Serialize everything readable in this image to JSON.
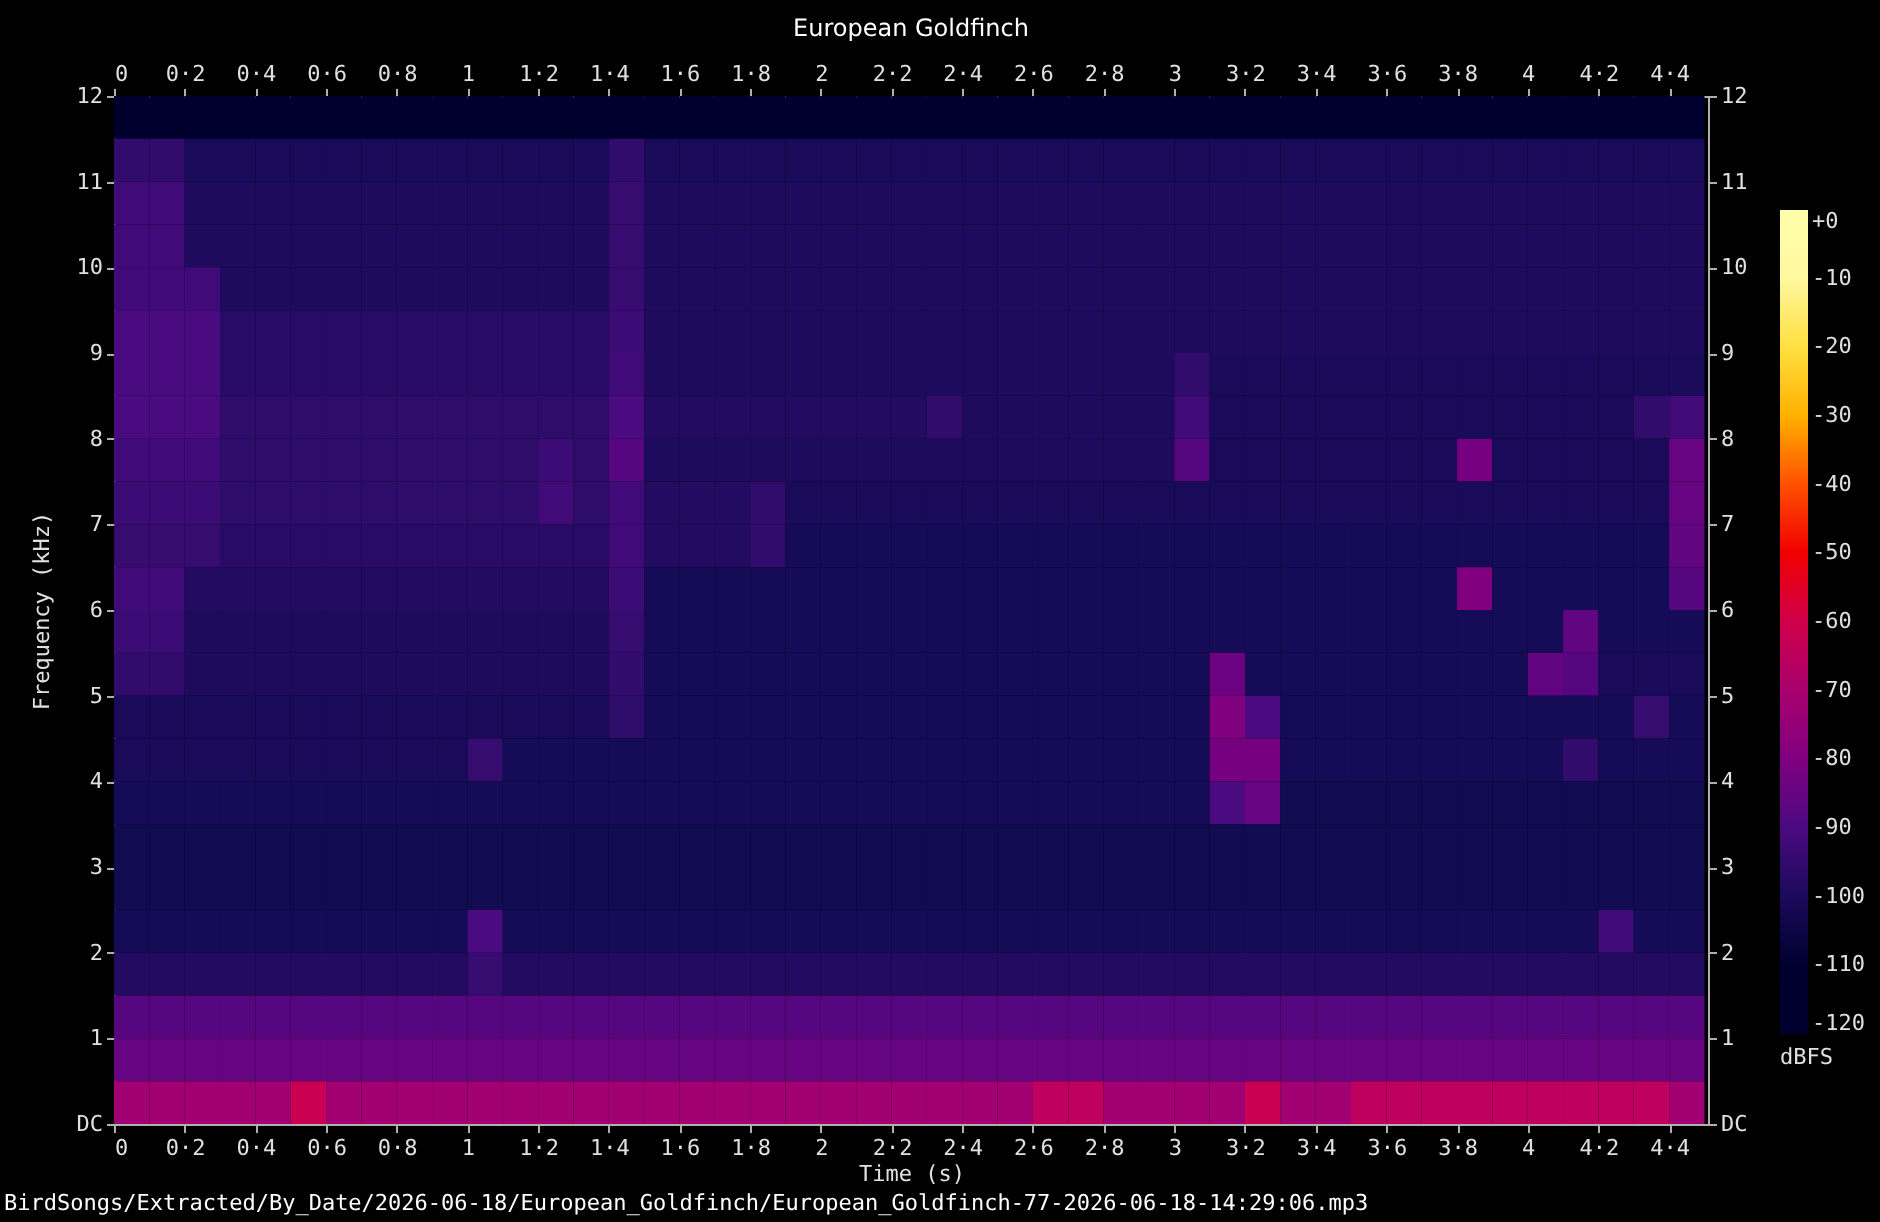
{
  "chart_data": {
    "type": "heatmap",
    "title": "European Goldfinch",
    "xlabel": "Time (s)",
    "ylabel": "Frequency (kHz)",
    "clabel": "dBFS",
    "annotations": [
      "BirdSongs/Extracted/By_Date/2026-06-18/European_Goldfinch/European_Goldfinch-77-2026-06-18-14:29:06.mp3"
    ],
    "xlim": [
      0,
      4.51
    ],
    "ylim": [
      0,
      12
    ],
    "x2lim": [
      0,
      4.51
    ],
    "y2lim": [
      0,
      12
    ],
    "xticks": [
      0,
      {
        "value": 0.2,
        "label": "0·2"
      },
      {
        "value": 0.4,
        "label": "0·4"
      },
      {
        "value": 0.6,
        "label": "0·6"
      },
      {
        "value": 0.8,
        "label": "0·8"
      },
      1,
      {
        "value": 1.2,
        "label": "1·2"
      },
      {
        "value": 1.4,
        "label": "1·4"
      },
      {
        "value": 1.6,
        "label": "1·6"
      },
      {
        "value": 1.8,
        "label": "1·8"
      },
      2,
      {
        "value": 2.2,
        "label": "2·2"
      },
      {
        "value": 2.4,
        "label": "2·4"
      },
      {
        "value": 2.6,
        "label": "2·6"
      },
      {
        "value": 2.8,
        "label": "2·8"
      },
      3,
      {
        "value": 3.2,
        "label": "3·2"
      },
      {
        "value": 3.4,
        "label": "3·4"
      },
      {
        "value": 3.6,
        "label": "3·6"
      },
      {
        "value": 3.8,
        "label": "3·8"
      },
      4,
      {
        "value": 4.2,
        "label": "4·2"
      },
      {
        "value": 4.4,
        "label": "4·4"
      }
    ],
    "x2ticks": [
      0,
      {
        "value": 0.2,
        "label": "0·2"
      },
      {
        "value": 0.4,
        "label": "0·4"
      },
      {
        "value": 0.6,
        "label": "0·6"
      },
      {
        "value": 0.8,
        "label": "0·8"
      },
      1,
      {
        "value": 1.2,
        "label": "1·2"
      },
      {
        "value": 1.4,
        "label": "1·4"
      },
      {
        "value": 1.6,
        "label": "1·6"
      },
      {
        "value": 1.8,
        "label": "1·8"
      },
      2,
      {
        "value": 2.2,
        "label": "2·2"
      },
      {
        "value": 2.4,
        "label": "2·4"
      },
      {
        "value": 2.6,
        "label": "2·6"
      },
      {
        "value": 2.8,
        "label": "2·8"
      },
      3,
      {
        "value": 3.2,
        "label": "3·2"
      },
      {
        "value": 3.4,
        "label": "3·4"
      },
      {
        "value": 3.6,
        "label": "3·6"
      },
      {
        "value": 3.8,
        "label": "3·8"
      },
      4,
      {
        "value": 4.2,
        "label": "4·2"
      },
      {
        "value": 4.4,
        "label": "4·4"
      }
    ],
    "yticks": [
      {
        "value": 0,
        "label": "DC"
      },
      1,
      2,
      3,
      4,
      5,
      6,
      7,
      8,
      9,
      10,
      11,
      12
    ],
    "y2ticks": [
      {
        "value": 0,
        "label": "DC"
      },
      1,
      2,
      3,
      4,
      5,
      6,
      7,
      8,
      9,
      10,
      11,
      12
    ],
    "clim": [
      -120,
      0
    ],
    "cticks": [
      {
        "value": 0,
        "label": "+0"
      },
      -10,
      -20,
      -30,
      -40,
      -50,
      -60,
      -70,
      -80,
      -90,
      -100,
      -110,
      -120
    ],
    "x": [
      0.05,
      0.15,
      0.25,
      0.35,
      0.45,
      0.55,
      0.65,
      0.75,
      0.85,
      0.95,
      1.05,
      1.15,
      1.25,
      1.35,
      1.45,
      1.55,
      1.65,
      1.75,
      1.85,
      1.95,
      2.05,
      2.15,
      2.25,
      2.35,
      2.45,
      2.55,
      2.65,
      2.75,
      2.85,
      2.95,
      3.05,
      3.15,
      3.25,
      3.35,
      3.45,
      3.55,
      3.65,
      3.75,
      3.85,
      3.95,
      4.05,
      4.15,
      4.25,
      4.35,
      4.45
    ],
    "cells": [
      [
        -115,
        -115,
        -115,
        -115,
        -115,
        -115,
        -115,
        -115,
        -115,
        -115,
        -115,
        -115,
        -115,
        -115,
        -115,
        -115,
        -115,
        -115,
        -115,
        -115,
        -115,
        -115,
        -115,
        -115,
        -115,
        -115,
        -115,
        -115,
        -115,
        -115,
        -115,
        -115,
        -115,
        -115,
        -115,
        -115,
        -115,
        -115,
        -115,
        -115,
        -115,
        -115,
        -115,
        -115,
        -115
      ],
      [
        -95,
        -95,
        -100,
        -100,
        -100,
        -100,
        -100,
        -100,
        -100,
        -100,
        -100,
        -100,
        -100,
        -100,
        -95,
        -100,
        -100,
        -100,
        -100,
        -100,
        -100,
        -100,
        -100,
        -100,
        -100,
        -100,
        -100,
        -100,
        -100,
        -100,
        -100,
        -100,
        -100,
        -100,
        -100,
        -100,
        -100,
        -100,
        -100,
        -100,
        -100,
        -100,
        -100,
        -100,
        -100
      ],
      [
        -92,
        -92,
        -99,
        -99,
        -99,
        -99,
        -99,
        -99,
        -99,
        -99,
        -99,
        -99,
        -99,
        -99,
        -94,
        -99,
        -99,
        -99,
        -99,
        -99,
        -99,
        -99,
        -99,
        -99,
        -99,
        -99,
        -99,
        -99,
        -99,
        -99,
        -99,
        -99,
        -99,
        -99,
        -99,
        -99,
        -99,
        -99,
        -99,
        -99,
        -99,
        -99,
        -99,
        -99,
        -99
      ],
      [
        -92,
        -92,
        -99,
        -99,
        -99,
        -99,
        -99,
        -99,
        -99,
        -99,
        -99,
        -99,
        -99,
        -99,
        -94,
        -99,
        -99,
        -99,
        -99,
        -99,
        -99,
        -99,
        -99,
        -99,
        -99,
        -99,
        -99,
        -99,
        -99,
        -99,
        -99,
        -99,
        -99,
        -99,
        -99,
        -99,
        -99,
        -99,
        -99,
        -99,
        -99,
        -99,
        -99,
        -99,
        -99
      ],
      [
        -92,
        -92,
        -92,
        -99,
        -99,
        -99,
        -99,
        -99,
        -99,
        -99,
        -99,
        -99,
        -99,
        -99,
        -94,
        -99,
        -99,
        -99,
        -99,
        -99,
        -99,
        -99,
        -99,
        -99,
        -99,
        -99,
        -99,
        -99,
        -99,
        -99,
        -99,
        -99,
        -99,
        -99,
        -99,
        -99,
        -99,
        -99,
        -99,
        -99,
        -99,
        -99,
        -99,
        -99,
        -99
      ],
      [
        -90,
        -90,
        -90,
        -97,
        -97,
        -97,
        -97,
        -97,
        -97,
        -97,
        -97,
        -97,
        -97,
        -97,
        -93,
        -99,
        -99,
        -99,
        -99,
        -99,
        -99,
        -99,
        -99,
        -99,
        -99,
        -99,
        -99,
        -99,
        -99,
        -99,
        -99,
        -99,
        -99,
        -99,
        -99,
        -99,
        -99,
        -99,
        -99,
        -99,
        -99,
        -99,
        -99,
        -99,
        -99
      ],
      [
        -90,
        -90,
        -90,
        -97,
        -97,
        -97,
        -97,
        -97,
        -97,
        -97,
        -97,
        -97,
        -97,
        -97,
        -92,
        -99,
        -99,
        -99,
        -99,
        -99,
        -99,
        -99,
        -99,
        -99,
        -99,
        -99,
        -99,
        -99,
        -99,
        -99,
        -95,
        -100,
        -100,
        -100,
        -100,
        -100,
        -100,
        -100,
        -100,
        -100,
        -100,
        -100,
        -100,
        -100,
        -100
      ],
      [
        -90,
        -90,
        -90,
        -96,
        -96,
        -96,
        -96,
        -96,
        -96,
        -96,
        -96,
        -96,
        -96,
        -96,
        -90,
        -98,
        -98,
        -98,
        -98,
        -98,
        -98,
        -98,
        -98,
        -95,
        -99,
        -99,
        -99,
        -99,
        -99,
        -99,
        -92,
        -100,
        -100,
        -100,
        -100,
        -100,
        -100,
        -100,
        -100,
        -100,
        -100,
        -100,
        -100,
        -95,
        -92
      ],
      [
        -92,
        -92,
        -92,
        -96,
        -96,
        -96,
        -96,
        -96,
        -96,
        -96,
        -96,
        -96,
        -93,
        -96,
        -88,
        -99,
        -99,
        -99,
        -99,
        -99,
        -99,
        -99,
        -99,
        -99,
        -99,
        -99,
        -99,
        -99,
        -99,
        -99,
        -88,
        -100,
        -100,
        -100,
        -100,
        -100,
        -100,
        -100,
        -82,
        -100,
        -100,
        -100,
        -100,
        -100,
        -85
      ],
      [
        -93,
        -93,
        -93,
        -96,
        -96,
        -96,
        -96,
        -96,
        -96,
        -96,
        -96,
        -96,
        -92,
        -96,
        -92,
        -98,
        -98,
        -98,
        -95,
        -100,
        -100,
        -100,
        -100,
        -100,
        -100,
        -100,
        -100,
        -100,
        -100,
        -100,
        -100,
        -100,
        -100,
        -100,
        -100,
        -100,
        -100,
        -100,
        -100,
        -100,
        -100,
        -100,
        -100,
        -100,
        -85
      ],
      [
        -94,
        -94,
        -94,
        -97,
        -97,
        -97,
        -97,
        -97,
        -97,
        -97,
        -97,
        -97,
        -97,
        -97,
        -92,
        -98,
        -98,
        -98,
        -95,
        -101,
        -101,
        -101,
        -101,
        -101,
        -101,
        -101,
        -101,
        -101,
        -101,
        -101,
        -101,
        -101,
        -101,
        -101,
        -101,
        -101,
        -101,
        -101,
        -101,
        -101,
        -101,
        -101,
        -101,
        -101,
        -86
      ],
      [
        -92,
        -92,
        -98,
        -98,
        -98,
        -98,
        -98,
        -98,
        -98,
        -98,
        -98,
        -98,
        -98,
        -98,
        -93,
        -101,
        -101,
        -101,
        -101,
        -101,
        -101,
        -101,
        -101,
        -101,
        -101,
        -101,
        -101,
        -101,
        -101,
        -101,
        -101,
        -101,
        -101,
        -101,
        -101,
        -101,
        -101,
        -101,
        -80,
        -101,
        -101,
        -101,
        -101,
        -101,
        -88
      ],
      [
        -93,
        -93,
        -99,
        -99,
        -99,
        -99,
        -99,
        -99,
        -99,
        -99,
        -99,
        -99,
        -99,
        -99,
        -94,
        -101,
        -101,
        -101,
        -101,
        -101,
        -101,
        -101,
        -101,
        -101,
        -101,
        -101,
        -101,
        -101,
        -101,
        -101,
        -101,
        -101,
        -101,
        -101,
        -101,
        -101,
        -101,
        -101,
        -101,
        -101,
        -101,
        -86,
        -101,
        -101,
        -101
      ],
      [
        -95,
        -95,
        -99,
        -99,
        -99,
        -99,
        -99,
        -99,
        -99,
        -99,
        -99,
        -99,
        -99,
        -99,
        -95,
        -101,
        -101,
        -101,
        -101,
        -101,
        -101,
        -101,
        -101,
        -101,
        -101,
        -101,
        -101,
        -101,
        -101,
        -101,
        -101,
        -84,
        -101,
        -101,
        -101,
        -101,
        -101,
        -101,
        -101,
        -101,
        -86,
        -88,
        -100,
        -100,
        -100
      ],
      [
        -100,
        -100,
        -100,
        -100,
        -100,
        -100,
        -100,
        -100,
        -100,
        -100,
        -100,
        -100,
        -100,
        -100,
        -96,
        -101,
        -101,
        -101,
        -101,
        -101,
        -101,
        -101,
        -101,
        -101,
        -101,
        -101,
        -101,
        -101,
        -101,
        -101,
        -101,
        -80,
        -90,
        -101,
        -101,
        -101,
        -101,
        -101,
        -101,
        -101,
        -101,
        -101,
        -101,
        -94,
        -101
      ],
      [
        -100,
        -100,
        -100,
        -100,
        -100,
        -100,
        -100,
        -100,
        -100,
        -100,
        -94,
        -101,
        -101,
        -101,
        -101,
        -101,
        -101,
        -101,
        -101,
        -101,
        -101,
        -101,
        -101,
        -101,
        -101,
        -101,
        -101,
        -101,
        -101,
        -101,
        -101,
        -82,
        -82,
        -101,
        -101,
        -101,
        -101,
        -101,
        -101,
        -101,
        -101,
        -95,
        -101,
        -101,
        -101
      ],
      [
        -101,
        -101,
        -101,
        -101,
        -101,
        -101,
        -101,
        -101,
        -101,
        -101,
        -101,
        -101,
        -101,
        -101,
        -101,
        -101,
        -101,
        -101,
        -101,
        -101,
        -101,
        -101,
        -101,
        -101,
        -101,
        -101,
        -101,
        -101,
        -101,
        -101,
        -101,
        -90,
        -85,
        -102,
        -102,
        -102,
        -102,
        -102,
        -102,
        -102,
        -102,
        -102,
        -102,
        -102,
        -102
      ],
      [
        -102,
        -102,
        -102,
        -102,
        -102,
        -102,
        -102,
        -102,
        -102,
        -102,
        -102,
        -102,
        -102,
        -102,
        -102,
        -102,
        -102,
        -102,
        -102,
        -102,
        -102,
        -102,
        -102,
        -102,
        -102,
        -102,
        -102,
        -102,
        -102,
        -102,
        -102,
        -102,
        -102,
        -102,
        -102,
        -102,
        -102,
        -102,
        -102,
        -102,
        -102,
        -102,
        -102,
        -102,
        -102
      ],
      [
        -102,
        -102,
        -102,
        -102,
        -102,
        -102,
        -102,
        -102,
        -102,
        -102,
        -102,
        -102,
        -102,
        -102,
        -102,
        -102,
        -102,
        -102,
        -102,
        -102,
        -102,
        -102,
        -102,
        -102,
        -102,
        -102,
        -102,
        -102,
        -102,
        -102,
        -102,
        -102,
        -102,
        -102,
        -102,
        -102,
        -102,
        -102,
        -102,
        -102,
        -102,
        -102,
        -102,
        -102,
        -102
      ],
      [
        -101,
        -101,
        -101,
        -101,
        -101,
        -101,
        -101,
        -101,
        -101,
        -101,
        -90,
        -101,
        -101,
        -101,
        -101,
        -101,
        -101,
        -101,
        -101,
        -101,
        -101,
        -101,
        -101,
        -101,
        -101,
        -101,
        -101,
        -101,
        -101,
        -101,
        -101,
        -101,
        -101,
        -101,
        -101,
        -101,
        -101,
        -101,
        -101,
        -101,
        -101,
        -101,
        -92,
        -101,
        -101
      ],
      [
        -98,
        -98,
        -98,
        -98,
        -98,
        -98,
        -98,
        -98,
        -98,
        -98,
        -94,
        -98,
        -98,
        -98,
        -98,
        -98,
        -98,
        -98,
        -98,
        -98,
        -98,
        -98,
        -98,
        -98,
        -98,
        -98,
        -98,
        -98,
        -98,
        -98,
        -98,
        -98,
        -98,
        -98,
        -98,
        -98,
        -98,
        -98,
        -98,
        -98,
        -98,
        -98,
        -98,
        -98,
        -98
      ],
      [
        -88,
        -88,
        -88,
        -88,
        -88,
        -88,
        -88,
        -88,
        -88,
        -88,
        -88,
        -88,
        -88,
        -88,
        -88,
        -88,
        -88,
        -88,
        -88,
        -88,
        -88,
        -88,
        -88,
        -88,
        -88,
        -88,
        -88,
        -88,
        -88,
        -88,
        -88,
        -88,
        -88,
        -88,
        -88,
        -88,
        -88,
        -88,
        -88,
        -88,
        -88,
        -88,
        -88,
        -88,
        -88
      ],
      [
        -85,
        -85,
        -85,
        -85,
        -85,
        -85,
        -85,
        -85,
        -85,
        -85,
        -85,
        -85,
        -85,
        -85,
        -85,
        -85,
        -85,
        -85,
        -85,
        -85,
        -85,
        -85,
        -85,
        -85,
        -85,
        -85,
        -85,
        -85,
        -85,
        -85,
        -85,
        -85,
        -85,
        -85,
        -85,
        -85,
        -85,
        -85,
        -85,
        -85,
        -85,
        -85,
        -85,
        -85,
        -85
      ],
      [
        -72,
        -72,
        -72,
        -72,
        -72,
        -62,
        -72,
        -72,
        -72,
        -72,
        -72,
        -72,
        -72,
        -72,
        -72,
        -72,
        -72,
        -72,
        -72,
        -72,
        -72,
        -72,
        -72,
        -72,
        -72,
        -72,
        -65,
        -65,
        -72,
        -72,
        -72,
        -72,
        -62,
        -72,
        -72,
        -65,
        -65,
        -65,
        -65,
        -65,
        -65,
        -65,
        -65,
        -65,
        -72
      ]
    ]
  }
}
